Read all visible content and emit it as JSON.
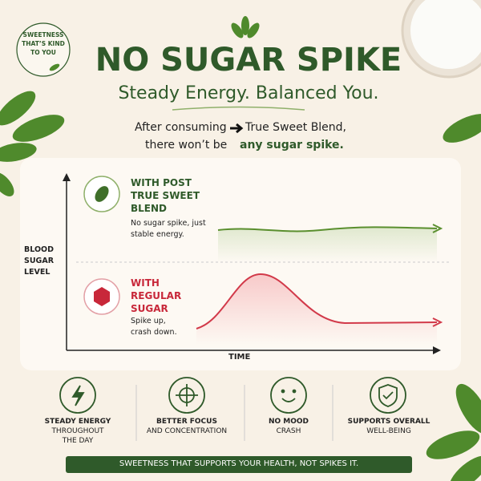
{
  "badge": {
    "lines": [
      "SWEETNESS",
      "THAT’S KIND",
      "TO YOU"
    ]
  },
  "header": {
    "title": "NO SUGAR SPIKE",
    "subtitle": "Steady Energy. Balanced You."
  },
  "intro": {
    "before_arrow": "After consuming",
    "product": "True Sweet Blend,",
    "line2": "there won’t be",
    "highlight": "any sugar spike."
  },
  "graph": {
    "y_label": "BLOOD SUGAR LEVEL",
    "x_label": "TIME",
    "blend": {
      "heading": "WITH POST TRUE SWEET BLEND",
      "description": "No sugar spike, just stable energy."
    },
    "regular": {
      "heading": "WITH REGULAR SUGAR",
      "description": "Spike up, crash down."
    }
  },
  "benefits": [
    {
      "title": "STEADY ENERGY",
      "subtitle": "THROUGHOUT THE DAY"
    },
    {
      "title": "BETTER FOCUS",
      "subtitle": "AND CONCENTRATION"
    },
    {
      "title": "NO MOOD",
      "subtitle": "CRASH"
    },
    {
      "title": "SUPPORTS OVERALL",
      "subtitle": "WELL-BEING"
    }
  ],
  "footer": {
    "text": "SWEETNESS THAT SUPPORTS YOUR HEALTH, NOT SPIKES IT."
  }
}
